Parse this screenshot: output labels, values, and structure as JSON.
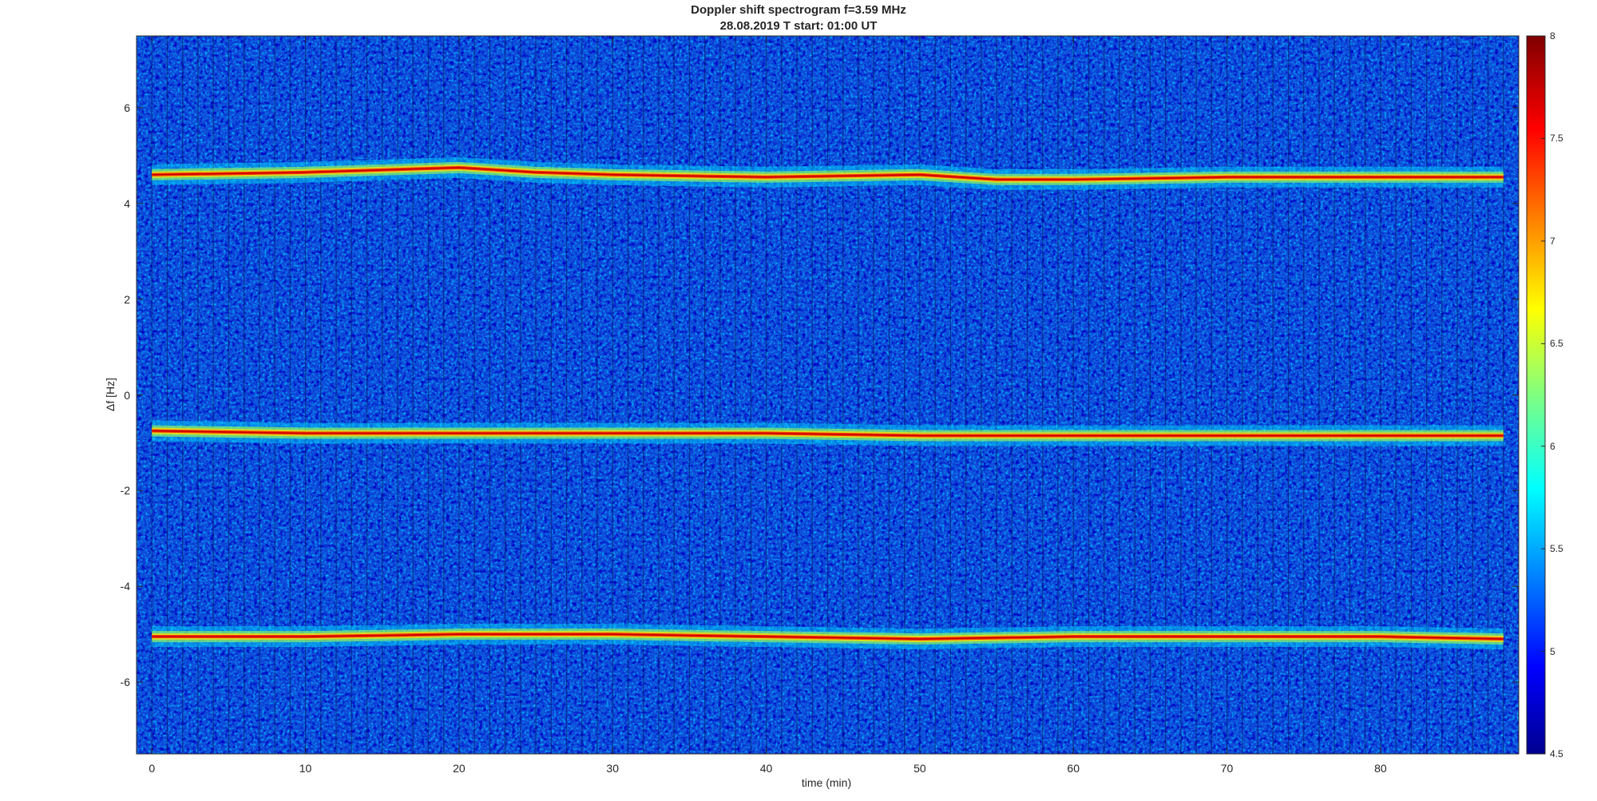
{
  "chart_data": {
    "type": "heatmap",
    "title": "Doppler shift spectrogram f=3.59 MHz",
    "subtitle": "28.08.2019   T start: 01:00 UT",
    "xlabel": "time (min)",
    "ylabel": "Δf [Hz]",
    "xlim": [
      -1,
      89
    ],
    "ylim": [
      -7.5,
      7.5
    ],
    "xticks": [
      0,
      10,
      20,
      30,
      40,
      50,
      60,
      70,
      80
    ],
    "yticks": [
      6,
      4,
      2,
      0,
      -2,
      -4,
      -6
    ],
    "colorbar": {
      "colormap": "jet",
      "clim": [
        4.5,
        8
      ],
      "ticks": [
        8,
        7.5,
        7,
        6.5,
        6,
        5.5,
        5,
        4.5
      ]
    },
    "grid": false,
    "signal_traces": [
      {
        "description": "upper Doppler line",
        "x": [
          0,
          10,
          20,
          25,
          30,
          40,
          50,
          55,
          60,
          70,
          80,
          88
        ],
        "y": [
          4.6,
          4.65,
          4.75,
          4.65,
          4.6,
          4.55,
          4.6,
          4.5,
          4.5,
          4.55,
          4.55,
          4.55
        ]
      },
      {
        "description": "middle Doppler line",
        "x": [
          0,
          10,
          20,
          30,
          40,
          50,
          60,
          70,
          80,
          88
        ],
        "y": [
          -0.75,
          -0.8,
          -0.8,
          -0.8,
          -0.8,
          -0.85,
          -0.85,
          -0.85,
          -0.85,
          -0.85
        ]
      },
      {
        "description": "lower Doppler line",
        "x": [
          0,
          10,
          20,
          30,
          40,
          50,
          60,
          70,
          80,
          88
        ],
        "y": [
          -5.05,
          -5.05,
          -5.0,
          -5.0,
          -5.05,
          -5.1,
          -5.05,
          -5.05,
          -5.05,
          -5.1
        ]
      }
    ],
    "background_level": 5.2
  }
}
